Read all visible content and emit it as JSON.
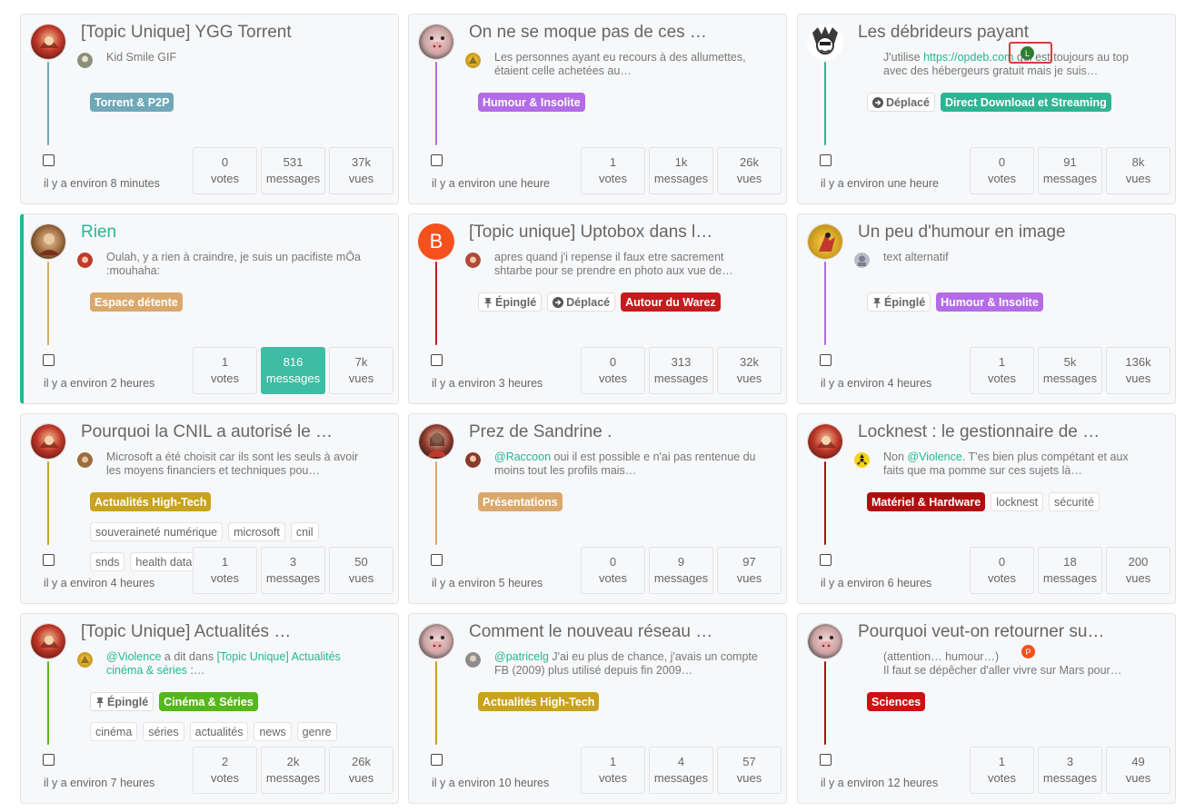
{
  "cards": [
    {
      "title": "[Topic Unique] YGG Torrent",
      "excerpt": "Kid Smile GIF",
      "tags": [
        {
          "label": "Torrent & P2P",
          "color": "#6fa8b8"
        }
      ],
      "time": "il y a environ 8 minutes",
      "votes": "0",
      "messages": "531",
      "vues": "37k",
      "line_color": "#6fa8b8"
    },
    {
      "title": "On ne se moque pas de ces …",
      "excerpt": "Les personnes ayant eu recours à des allumettes, étaient celle achetées au…",
      "tags": [
        {
          "label": "Humour & Insolite",
          "color": "#b36be8"
        }
      ],
      "time": "il y a environ une heure",
      "votes": "1",
      "messages": "1k",
      "vues": "26k",
      "line_color": "#b36be8"
    },
    {
      "title": "Les débrideurs payant",
      "excerpt_pre": "J'utilise ",
      "excerpt_link": "https://opdeb.com",
      "excerpt_post": " qui est toujours au top avec des hébergeurs gratuit mais je suis…",
      "moved_label": "Déplacé",
      "tags": [
        {
          "label": "Direct Download et Streaming",
          "color": "#2fb493"
        }
      ],
      "time": "il y a environ une heure",
      "votes": "0",
      "messages": "91",
      "vues": "8k",
      "line_color": "#2fb493",
      "marker_letter": "L"
    },
    {
      "title": "Rien",
      "excerpt": "Oulah, y a rien à craindre, je suis un pacifiste mÔa :mouhaha:",
      "tags": [
        {
          "label": "Espace détente",
          "color": "#dba86b"
        }
      ],
      "time": "il y a environ 2 heures",
      "votes": "1",
      "messages": "816",
      "vues": "7k",
      "line_color": "#dba86b"
    },
    {
      "title": "[Topic unique] Uptobox dans l…",
      "excerpt": "apres quand j'i repense il faux etre sacrement shtarbe pour se prendre en photo aux vue de…",
      "avatar_letter": "B",
      "pinned_label": "Épinglé",
      "moved_label": "Déplacé",
      "tags": [
        {
          "label": "Autour du Warez",
          "color": "#c41c1c"
        }
      ],
      "time": "il y a environ 3 heures",
      "votes": "0",
      "messages": "313",
      "vues": "32k",
      "line_color": "#c41c1c"
    },
    {
      "title": "Un peu d'humour en image",
      "excerpt": "text alternatif",
      "pinned_label": "Épinglé",
      "tags": [
        {
          "label": "Humour & Insolite",
          "color": "#b36be8"
        }
      ],
      "time": "il y a environ 4 heures",
      "votes": "1",
      "messages": "5k",
      "vues": "136k",
      "line_color": "#b36be8"
    },
    {
      "title": "Pourquoi la CNIL a autorisé le …",
      "excerpt": "Microsoft a été choisit car ils sont les seuls à avoir les moyens financiers et techniques pou…",
      "tags": [
        {
          "label": "Actualités High-Tech",
          "color": "#c9a21e"
        }
      ],
      "word_tags": [
        "souveraineté numérique",
        "microsoft",
        "cnil",
        "snds",
        "health data"
      ],
      "time": "il y a environ 4 heures",
      "votes": "1",
      "messages": "3",
      "vues": "50",
      "line_color": "#c9a21e"
    },
    {
      "title": "Prez de Sandrine .",
      "excerpt_link": "@Raccoon",
      "excerpt_post": " oui il est possible e n'ai pas rentenue du moins tout les profils mais…",
      "tags": [
        {
          "label": "Présentations",
          "color": "#dba86b"
        }
      ],
      "time": "il y a environ 5 heures",
      "votes": "0",
      "messages": "9",
      "vues": "97",
      "line_color": "#dba86b"
    },
    {
      "title": "Locknest : le gestionnaire de …",
      "excerpt_pre": "Non ",
      "excerpt_link": "@Violence",
      "excerpt_post": ". T'es bien plus compétant et aux faits que ma pomme sur ces sujets là…",
      "tags": [
        {
          "label": "Matériel & Hardware",
          "color": "#b00e0e"
        }
      ],
      "word_tags": [
        "locknest",
        "sécurité"
      ],
      "time": "il y a environ 6 heures",
      "votes": "0",
      "messages": "18",
      "vues": "200",
      "line_color": "#b00e0e"
    },
    {
      "title": "[Topic Unique] Actualités …",
      "excerpt_link": "@Violence",
      "excerpt_post": " a dit dans ",
      "excerpt_link2": "[Topic Unique] Actualités cinéma & séries",
      "excerpt_end": " :…",
      "pinned_label": "Épinglé",
      "tags": [
        {
          "label": "Cinéma & Séries",
          "color": "#55b81a"
        }
      ],
      "word_tags": [
        "cinéma",
        "séries",
        "actualités",
        "news",
        "genre"
      ],
      "time": "il y a environ 7 heures",
      "votes": "2",
      "messages": "2k",
      "vues": "26k",
      "line_color": "#55b81a"
    },
    {
      "title": "Comment le nouveau réseau …",
      "excerpt_link": "@patricelg",
      "excerpt_post": " J'ai eu plus de chance, j'avais un compte FB (2009) plus utilisé depuis fin 2009…",
      "tags": [
        {
          "label": "Actualités High-Tech",
          "color": "#c9a21e"
        }
      ],
      "time": "il y a environ 10 heures",
      "votes": "1",
      "messages": "4",
      "vues": "57",
      "line_color": "#c9a21e"
    },
    {
      "title": "Pourquoi veut-on retourner su…",
      "excerpt": "(attention… humour…)",
      "excerpt_line2": "Il faut se dépêcher d'aller vivre sur Mars pour…",
      "tags": [
        {
          "label": "Sciences",
          "color": "#cc1212"
        }
      ],
      "time": "il y a environ 12 heures",
      "votes": "1",
      "messages": "3",
      "vues": "49",
      "line_color": "#b00e0e",
      "marker_letter": "P"
    }
  ],
  "labels": {
    "votes": "votes",
    "messages": "messages",
    "vues": "vues"
  },
  "colors": {
    "accent": "#22b893",
    "hot_stat": "#3dbda3"
  }
}
